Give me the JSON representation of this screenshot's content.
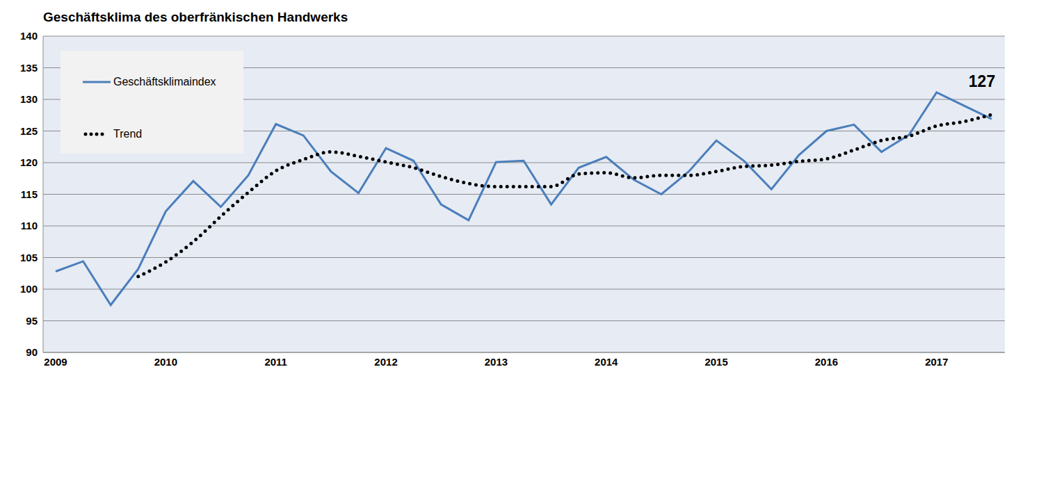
{
  "chart_data": {
    "type": "line",
    "title": "Geschäftsklima des oberfränkischen Handwerks",
    "categories": [
      "2009",
      null,
      null,
      null,
      "2010",
      null,
      null,
      null,
      "2011",
      null,
      null,
      null,
      "2012",
      null,
      null,
      null,
      "2013",
      null,
      null,
      null,
      "2014",
      null,
      null,
      null,
      "2015",
      null,
      null,
      null,
      "2016",
      null,
      null,
      null,
      "2017",
      null,
      null
    ],
    "series": [
      {
        "name": "Geschäftsklimaindex",
        "color": "#4a7ebb",
        "line_style": "solid",
        "values": [
          102.8,
          104.4,
          97.5,
          103.2,
          112.3,
          117.1,
          113.0,
          118.0,
          126.1,
          124.3,
          118.6,
          115.2,
          122.3,
          120.3,
          113.4,
          110.9,
          120.1,
          120.3,
          113.4,
          119.2,
          120.9,
          117.3,
          115.0,
          118.6,
          123.5,
          120.3,
          115.8,
          121.2,
          125.0,
          126.0,
          121.7,
          124.4,
          131.1,
          129.0,
          126.9
        ]
      },
      {
        "name": "Trend",
        "color": "#000000",
        "line_style": "dotted",
        "values": [
          null,
          null,
          null,
          102.0,
          104.3,
          107.5,
          111.5,
          115.3,
          118.7,
          120.5,
          121.7,
          121.0,
          120.1,
          119.2,
          117.8,
          116.7,
          116.2,
          116.2,
          116.2,
          118.2,
          118.4,
          117.6,
          118.0,
          118.0,
          118.6,
          119.4,
          119.6,
          120.2,
          120.6,
          122.0,
          123.5,
          124.2,
          125.8,
          126.5,
          127.6
        ]
      }
    ],
    "annotation": "127",
    "ylim": [
      90,
      140
    ],
    "yticks": [
      90,
      95,
      100,
      105,
      110,
      115,
      120,
      125,
      130,
      135,
      140
    ],
    "grid": true,
    "legend": "upper left"
  }
}
